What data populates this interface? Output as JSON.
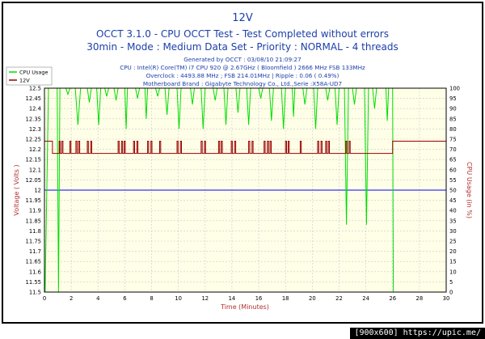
{
  "colors": {
    "title": "#1c3fa8",
    "info": "#1c3fa8",
    "axis_left": "#b03030",
    "axis_right": "#b03030",
    "cpu": "#00dd00",
    "v12": "#990000",
    "ref": "#0000ff",
    "plot_bg": "#ffffe8",
    "outer_bg": "#ffffff"
  },
  "chart_data": {
    "type": "line",
    "title": "12V",
    "subtitle1": "OCCT 3.1.0 - CPU OCCT Test - Test Completed without errors",
    "subtitle2": "30min - Mode : Medium Data Set - Priority : NORMAL - 4 threads",
    "info": [
      "Generated by OCCT : 03/08/10 21:09:27",
      "CPU : Intel(R) Core(TM) i7 CPU 920 @ 2.67GHz ( Bloomfield ) 2666 MHz FSB 133MHz",
      "Overclock : 4493.88 MHz ; FSB 214.01MHz | Ripple : 0.06 ( 0.49%)",
      "Motherboard Brand : Gigabyte Technology Co., Ltd.,Serie :X58A-UD7"
    ],
    "xlabel": "Time (Minutes)",
    "ylabel_left": "Voltage ( Volts )",
    "ylabel_right": "CPU Usage (in %)",
    "xlim": [
      0,
      30
    ],
    "ylim_left": [
      11.5,
      12.5
    ],
    "ylim_right": [
      0,
      100
    ],
    "x_ticks": [
      "0",
      "2",
      "4",
      "6",
      "8",
      "10",
      "12",
      "14",
      "16",
      "18",
      "20",
      "22",
      "24",
      "26",
      "28",
      "30"
    ],
    "y_left_ticks": [
      "12.5",
      "12.45",
      "12.4",
      "12.35",
      "12.3",
      "12.25",
      "12.2",
      "12.15",
      "12.1",
      "12.05",
      "12",
      "11.95",
      "11.9",
      "11.85",
      "11.8",
      "11.75",
      "11.7",
      "11.65",
      "11.6",
      "11.55",
      "11.5"
    ],
    "y_right_ticks": [
      "100",
      "95",
      "90",
      "85",
      "80",
      "75",
      "70",
      "65",
      "60",
      "55",
      "50",
      "45",
      "40",
      "35",
      "30",
      "25",
      "20",
      "15",
      "10",
      "5",
      "0"
    ],
    "legend": {
      "placement": "top-left",
      "entries": [
        "CPU Usage",
        "12V"
      ]
    },
    "reference_line_left": 12.0,
    "series": [
      {
        "name": "CPU Usage",
        "axis": "right",
        "points": [
          [
            0,
            0
          ],
          [
            0.05,
            0
          ],
          [
            0.3,
            100
          ],
          [
            0.95,
            100
          ],
          [
            1.05,
            0
          ],
          [
            1.15,
            100
          ],
          [
            1.6,
            100
          ],
          [
            1.75,
            97
          ],
          [
            1.9,
            100
          ],
          [
            2.3,
            100
          ],
          [
            2.5,
            82
          ],
          [
            2.7,
            100
          ],
          [
            3.2,
            100
          ],
          [
            3.35,
            93
          ],
          [
            3.5,
            100
          ],
          [
            3.9,
            100
          ],
          [
            4.05,
            82
          ],
          [
            4.2,
            100
          ],
          [
            4.5,
            100
          ],
          [
            4.65,
            96
          ],
          [
            4.8,
            100
          ],
          [
            5.2,
            100
          ],
          [
            5.35,
            94
          ],
          [
            5.5,
            100
          ],
          [
            6.0,
            100
          ],
          [
            6.1,
            80
          ],
          [
            6.2,
            100
          ],
          [
            6.8,
            100
          ],
          [
            6.95,
            95
          ],
          [
            7.1,
            100
          ],
          [
            7.5,
            100
          ],
          [
            7.6,
            85
          ],
          [
            7.7,
            100
          ],
          [
            8.3,
            100
          ],
          [
            8.45,
            96
          ],
          [
            8.6,
            100
          ],
          [
            9.0,
            100
          ],
          [
            9.15,
            87
          ],
          [
            9.3,
            100
          ],
          [
            9.9,
            100
          ],
          [
            10.05,
            80
          ],
          [
            10.2,
            100
          ],
          [
            10.9,
            100
          ],
          [
            11.05,
            92
          ],
          [
            11.2,
            100
          ],
          [
            11.7,
            100
          ],
          [
            11.85,
            80
          ],
          [
            12.0,
            100
          ],
          [
            12.6,
            100
          ],
          [
            12.75,
            94
          ],
          [
            12.9,
            100
          ],
          [
            13.4,
            100
          ],
          [
            13.55,
            82
          ],
          [
            13.7,
            100
          ],
          [
            14.3,
            100
          ],
          [
            14.45,
            88
          ],
          [
            14.6,
            100
          ],
          [
            15.1,
            100
          ],
          [
            15.25,
            82
          ],
          [
            15.4,
            100
          ],
          [
            16.0,
            100
          ],
          [
            16.15,
            95
          ],
          [
            16.3,
            100
          ],
          [
            16.8,
            100
          ],
          [
            16.95,
            84
          ],
          [
            17.1,
            100
          ],
          [
            17.7,
            100
          ],
          [
            17.85,
            80
          ],
          [
            18.0,
            100
          ],
          [
            18.5,
            100
          ],
          [
            18.6,
            86
          ],
          [
            18.7,
            100
          ],
          [
            19.3,
            100
          ],
          [
            19.45,
            92
          ],
          [
            19.6,
            100
          ],
          [
            20.1,
            100
          ],
          [
            20.25,
            80
          ],
          [
            20.4,
            100
          ],
          [
            21.0,
            100
          ],
          [
            21.15,
            94
          ],
          [
            21.3,
            100
          ],
          [
            21.7,
            100
          ],
          [
            21.85,
            82
          ],
          [
            22.0,
            100
          ],
          [
            22.4,
            100
          ],
          [
            22.55,
            33
          ],
          [
            22.7,
            100
          ],
          [
            23.0,
            100
          ],
          [
            23.15,
            92
          ],
          [
            23.3,
            100
          ],
          [
            23.9,
            100
          ],
          [
            24.05,
            33
          ],
          [
            24.2,
            100
          ],
          [
            24.5,
            100
          ],
          [
            24.65,
            90
          ],
          [
            24.8,
            100
          ],
          [
            25.5,
            100
          ],
          [
            25.6,
            84
          ],
          [
            25.7,
            100
          ],
          [
            26.0,
            100
          ],
          [
            26.05,
            0
          ],
          [
            30,
            0
          ]
        ]
      },
      {
        "name": "12V",
        "axis": "left",
        "baseline": 12.18,
        "high": 12.24,
        "start_end_value": 12.24,
        "spike_times": [
          1.1,
          1.3,
          1.9,
          2.35,
          2.55,
          3.2,
          3.45,
          5.5,
          5.75,
          5.95,
          6.65,
          6.9,
          7.7,
          7.95,
          8.6,
          9.9,
          10.15,
          11.7,
          11.95,
          13.0,
          13.2,
          13.95,
          14.2,
          15.25,
          15.5,
          16.4,
          16.65,
          16.85,
          18.0,
          18.2,
          19.1,
          20.4,
          20.65,
          21.0,
          21.2,
          22.5,
          22.75
        ],
        "step_time_start": 0.6,
        "step_time_end": 26.0
      }
    ]
  },
  "watermark": "[900x600] https://upic.me/"
}
